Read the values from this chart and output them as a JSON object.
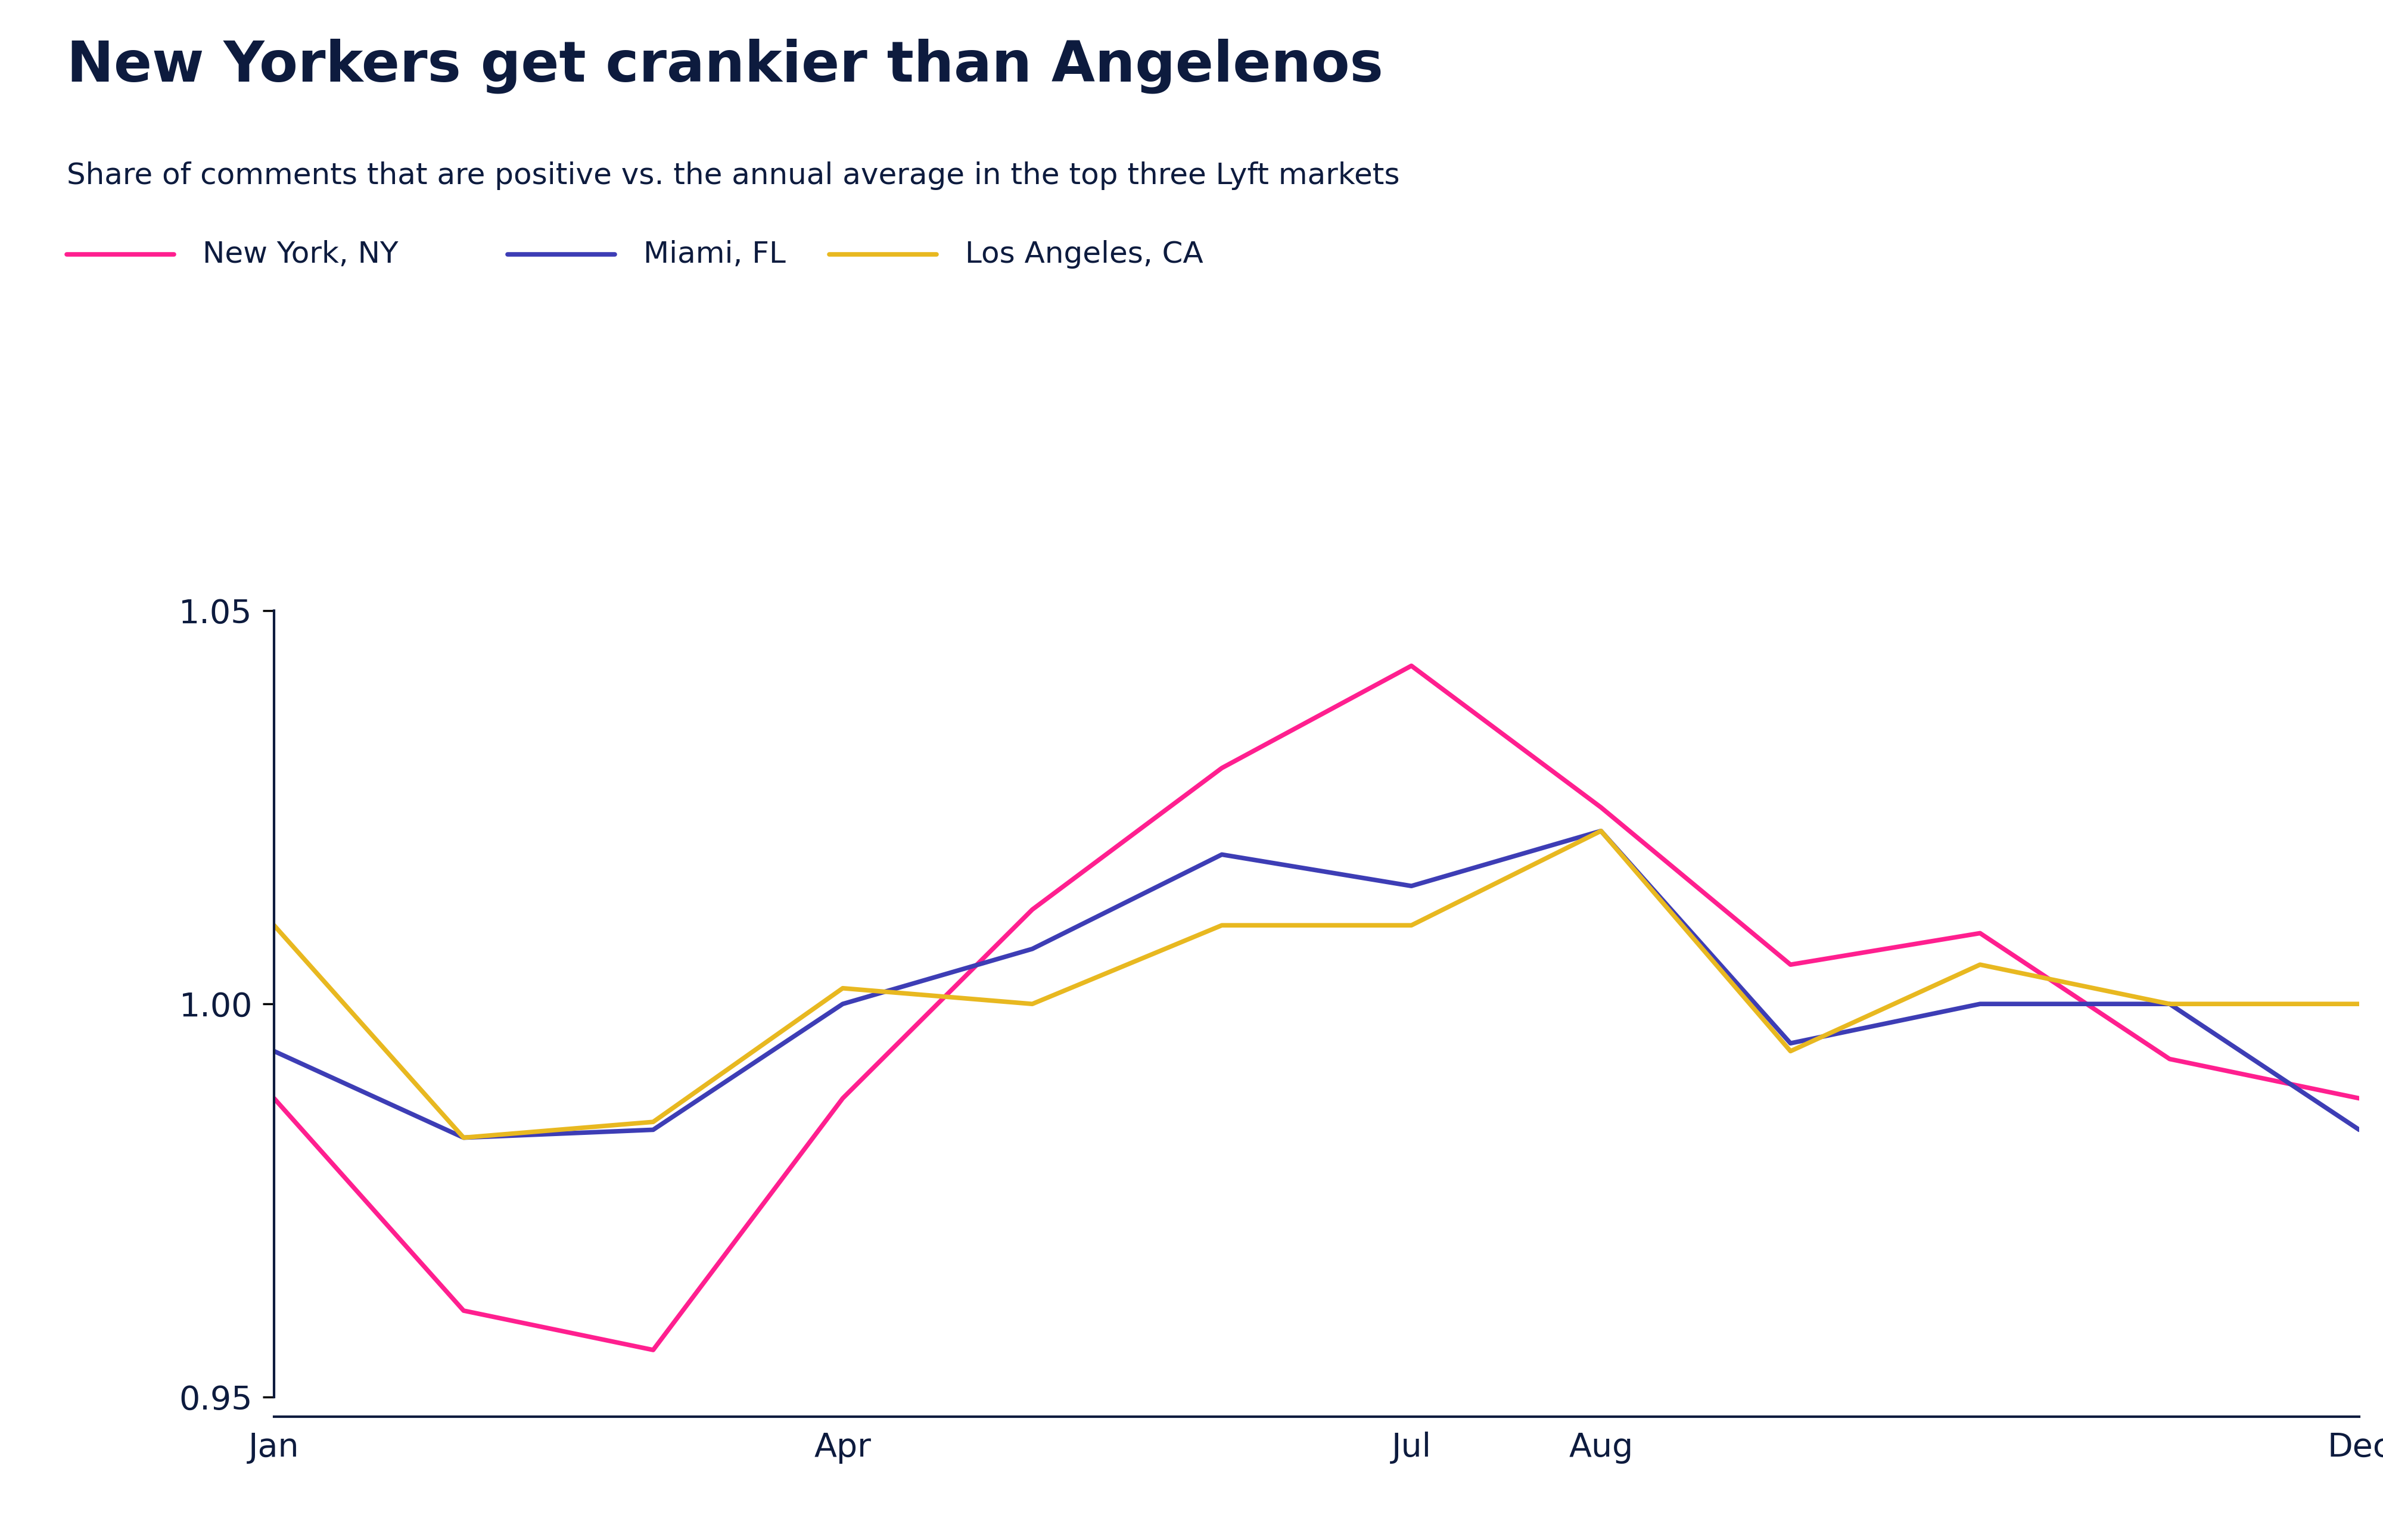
{
  "title": "New Yorkers get crankier than Angelenos",
  "subtitle": "Share of comments that are positive vs. the annual average in the top three Lyft markets",
  "title_color": "#0d1b3e",
  "subtitle_color": "#0d1b3e",
  "legend_labels": [
    "New York, NY",
    "Miami, FL",
    "Los Angeles, CA"
  ],
  "line_colors": [
    "#ff1f8f",
    "#3d3db5",
    "#e8b820"
  ],
  "months": [
    1,
    2,
    3,
    4,
    5,
    6,
    7,
    8,
    9,
    10,
    11,
    12
  ],
  "new_york": [
    0.988,
    0.961,
    0.956,
    0.988,
    1.012,
    1.03,
    1.043,
    1.025,
    1.005,
    1.009,
    0.993,
    0.988
  ],
  "miami": [
    0.994,
    0.983,
    0.984,
    1.0,
    1.007,
    1.019,
    1.015,
    1.022,
    0.995,
    1.0,
    1.0,
    0.984
  ],
  "los_angeles": [
    1.01,
    0.983,
    0.985,
    1.002,
    1.0,
    1.01,
    1.01,
    1.022,
    0.994,
    1.005,
    1.0,
    1.0
  ],
  "ylim": [
    0.9475,
    1.065
  ],
  "yticks": [
    0.95,
    1.0,
    1.05
  ],
  "xtick_positions": [
    1,
    4,
    7,
    8,
    12
  ],
  "xtick_labels": [
    "Jan",
    "Apr",
    "Jul",
    "Aug",
    "Dec"
  ],
  "background_color": "#ffffff",
  "dark_color": "#0d1b3e",
  "title_fontsize": 68,
  "subtitle_fontsize": 36,
  "legend_fontsize": 36,
  "tick_fontsize": 40,
  "line_width": 5.5
}
